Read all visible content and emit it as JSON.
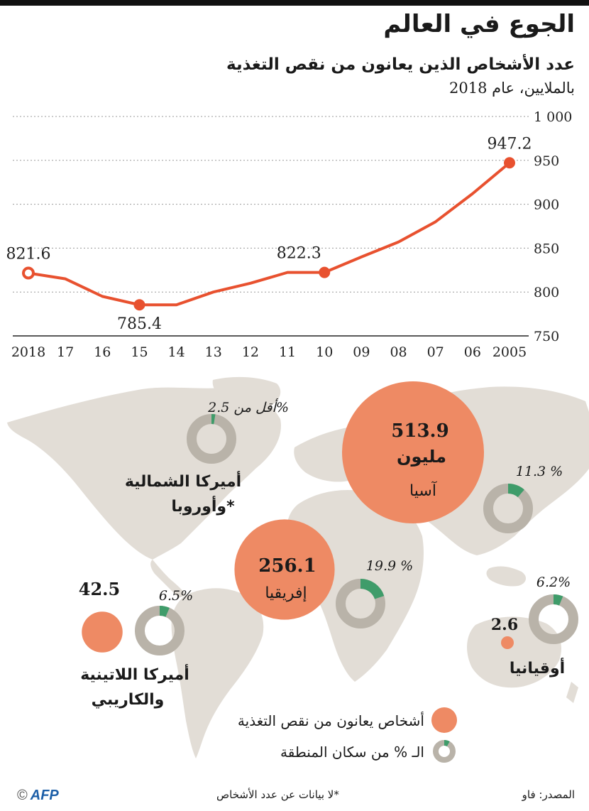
{
  "header": {
    "title": "الجوع في العالم",
    "subtitle": "عدد الأشخاص الذين يعانون من نقص التغذية",
    "unit": "بالملايين، عام 2018"
  },
  "chart_data": [
    {
      "type": "line",
      "x": [
        "2005",
        "06",
        "07",
        "08",
        "09",
        "10",
        "11",
        "12",
        "13",
        "14",
        "15",
        "16",
        "17",
        "2018"
      ],
      "values": [
        947.2,
        912,
        880,
        857,
        840,
        822.3,
        822.3,
        810,
        800,
        785.4,
        785.4,
        795,
        815,
        821.6
      ],
      "data_labels": [
        {
          "x": "2005",
          "value": "947.2"
        },
        {
          "x": "10",
          "value": "822.3"
        },
        {
          "x": "15",
          "value": "785.4"
        },
        {
          "x": "2018",
          "value": "821.6"
        }
      ],
      "y_ticks": [
        "750",
        "800",
        "850",
        "900",
        "950",
        "1 000"
      ],
      "ylim": [
        750,
        1000
      ],
      "x_direction": "right-to-left",
      "grid": true,
      "color": "#e8512f"
    },
    {
      "type": "bubble",
      "regions": [
        {
          "name": "آسيا",
          "value": "513.9",
          "value_suffix": "مليون",
          "share": 11.3,
          "share_label": "11.3 %"
        },
        {
          "name": "إفريقيا",
          "value": "256.1",
          "share": 19.9,
          "share_label": "19.9 %"
        },
        {
          "name": "أميركا اللاتينية",
          "name_line2": "والكاريبي",
          "value": "42.5",
          "share": 6.5,
          "share_label": "6.5%"
        },
        {
          "name": "أوقيانيا",
          "value": "2.6",
          "share": 6.2,
          "share_label": "6.2%"
        },
        {
          "name": "أميركا الشمالية",
          "name_line2": "وأوروبا*",
          "value": "",
          "share": 2.5,
          "share_label": "أقل من 2.5%"
        }
      ],
      "legend": [
        {
          "label": "أشخاص يعانون من نقص التغذية",
          "kind": "bubble"
        },
        {
          "label": "الـ % من سكان المنطقة",
          "kind": "donut"
        }
      ],
      "colors": {
        "bubble": "#ee8a64",
        "donut_bg": "#b9b3a9",
        "donut_share": "#3f9c6a",
        "land": "#e2ddd6"
      }
    }
  ],
  "footer": {
    "source": "المصدر: فاو",
    "footnote": "*لا بيانات عن عدد الأشخاص",
    "logo": "AFP",
    "copyright": "©"
  }
}
